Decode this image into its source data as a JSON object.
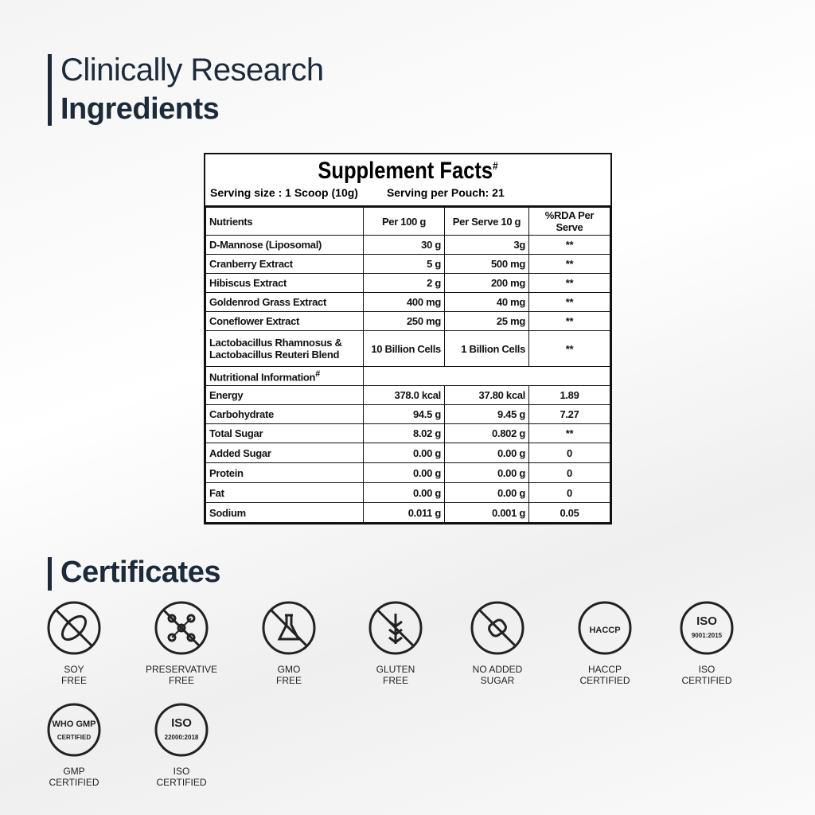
{
  "header": {
    "line1": "Clinically Research",
    "line2": "Ingredients"
  },
  "facts": {
    "title": "Supplement Facts",
    "title_mark": "#",
    "serving_size": "Serving size : 1 Scoop (10g)",
    "serving_per_pouch": "Serving per Pouch: 21",
    "columns": [
      "Nutrients",
      "Per 100 g",
      "Per Serve 10 g",
      "%RDA Per Serve"
    ],
    "rows": [
      [
        "D-Mannose (Liposomal)",
        "30 g",
        "3g",
        "**"
      ],
      [
        "Cranberry Extract",
        "5 g",
        "500 mg",
        "**"
      ],
      [
        "Hibiscus Extract",
        "2 g",
        "200 mg",
        "**"
      ],
      [
        "Goldenrod Grass Extract",
        "400 mg",
        "40 mg",
        "**"
      ],
      [
        "Coneflower Extract",
        "250 mg",
        "25 mg",
        "**"
      ],
      [
        "Lactobacillus Rhamnosus & Lactobacillus Reuteri Blend",
        "10 Billion Cells",
        "1 Billion Cells",
        "**"
      ]
    ],
    "nutrition_title": "Nutritional Information",
    "nutrition_mark": "#",
    "nutrition_rows": [
      [
        "Energy",
        "378.0 kcal",
        "37.80 kcal",
        "1.89"
      ],
      [
        "Carbohydrate",
        "94.5 g",
        "9.45 g",
        "7.27"
      ],
      [
        "Total Sugar",
        "8.02 g",
        "0.802 g",
        "**"
      ],
      [
        "Added Sugar",
        "0.00 g",
        "0.00 g",
        "0"
      ],
      [
        "Protein",
        "0.00 g",
        "0.00 g",
        "0"
      ],
      [
        "Fat",
        "0.00 g",
        "0.00 g",
        "0"
      ],
      [
        "Sodium",
        "0.011 g",
        "0.001 g",
        "0.05"
      ]
    ]
  },
  "certificates": {
    "title": "Certificates",
    "items": [
      {
        "label": [
          "SOY",
          "FREE"
        ]
      },
      {
        "label": [
          "PRESERVATIVE",
          "FREE"
        ]
      },
      {
        "label": [
          "GMO",
          "FREE"
        ]
      },
      {
        "label": [
          "GLUTEN",
          "FREE"
        ]
      },
      {
        "label": [
          "NO ADDED",
          "SUGAR"
        ]
      },
      {
        "label": [
          "HACCP",
          "CERTIFIED"
        ],
        "badge": [
          "HACCP"
        ]
      },
      {
        "label": [
          "ISO",
          "CERTIFIED"
        ],
        "badge": [
          "ISO",
          "9001:2015"
        ]
      },
      {
        "label": [
          "GMP",
          "CERTIFIED"
        ],
        "badge": [
          "WHO GMP",
          "CERTIFIED"
        ]
      },
      {
        "label": [
          "ISO",
          "CERTIFIED"
        ],
        "badge": [
          "ISO",
          "22000:2018"
        ]
      }
    ]
  }
}
